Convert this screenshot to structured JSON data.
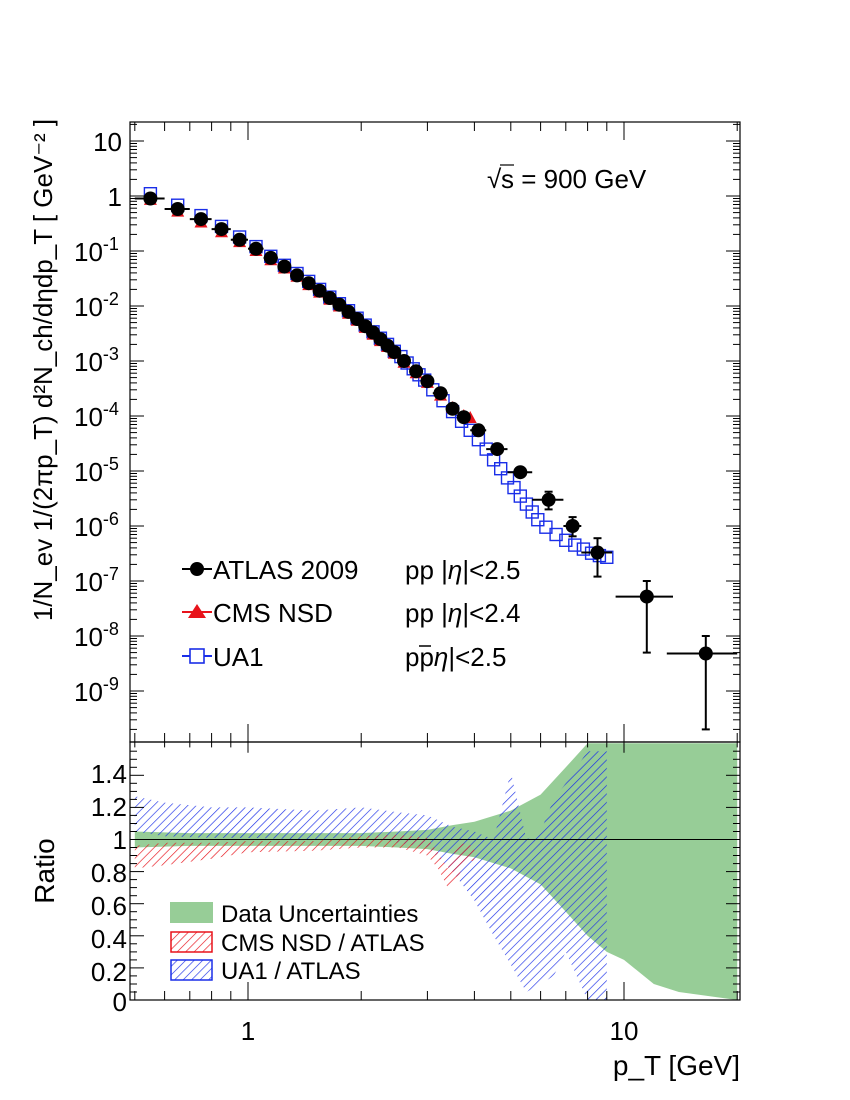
{
  "chart_data": [
    {
      "type": "scatter",
      "panel": "top",
      "title": "",
      "annotation": "s = 900 GeV",
      "annotation_sqrt_symbol": "√",
      "xlabel": "p_T [GeV]",
      "ylabel": "1/N_ev 1/(2πp_T) d²N_ch/dηdp_T [ GeV⁻² ]",
      "xscale": "log",
      "yscale": "log",
      "xlim": [
        0.5,
        20
      ],
      "ylim": [
        2.2e-10,
        22
      ],
      "y_ticks": [
        {
          "value": 10,
          "label": "10"
        },
        {
          "value": 1,
          "label": "1"
        },
        {
          "value": 0.1,
          "base": "10",
          "exp": "-1"
        },
        {
          "value": 0.01,
          "base": "10",
          "exp": "-2"
        },
        {
          "value": 0.001,
          "base": "10",
          "exp": "-3"
        },
        {
          "value": 0.0001,
          "base": "10",
          "exp": "-4"
        },
        {
          "value": 1e-05,
          "base": "10",
          "exp": "-5"
        },
        {
          "value": 1e-06,
          "base": "10",
          "exp": "-6"
        },
        {
          "value": 1e-07,
          "base": "10",
          "exp": "-7"
        },
        {
          "value": 1e-08,
          "base": "10",
          "exp": "-8"
        },
        {
          "value": 1e-09,
          "base": "10",
          "exp": "-9"
        }
      ],
      "legend": [
        {
          "name": "ATLAS 2009",
          "process": "pp |η|<2.5",
          "marker": "circle",
          "color": "#000000"
        },
        {
          "name": "CMS NSD",
          "process": "pp |η|<2.4",
          "marker": "triangle",
          "color": "#e8131b"
        },
        {
          "name": "UA1",
          "process": "pp̄ |η|<2.5",
          "marker": "open-square",
          "color": "#1a2ee8"
        }
      ],
      "legend_text": {
        "atlas_name": "ATLAS 2009",
        "atlas_proc": "pp |",
        "cms_name": "CMS NSD",
        "cms_proc": "pp |",
        "ua1_name": "UA1",
        "ua1_proc": "pp",
        "eta": "η",
        "atlas_cut": "|<2.5",
        "cms_cut": "|<2.4",
        "ua1_cut": "|<2.5",
        "ua1_pbar": "p̄"
      },
      "series": [
        {
          "name": "ATLAS 2009",
          "x": [
            0.55,
            0.65,
            0.75,
            0.85,
            0.95,
            1.05,
            1.15,
            1.25,
            1.35,
            1.45,
            1.55,
            1.65,
            1.75,
            1.85,
            1.95,
            2.05,
            2.15,
            2.25,
            2.35,
            2.45,
            2.6,
            2.8,
            3.0,
            3.25,
            3.5,
            3.75,
            4.1,
            4.6,
            5.3,
            6.3,
            7.3,
            8.5,
            11.5,
            16.5
          ],
          "y": [
            0.9,
            0.58,
            0.38,
            0.25,
            0.16,
            0.11,
            0.075,
            0.052,
            0.036,
            0.026,
            0.019,
            0.014,
            0.0105,
            0.0078,
            0.0058,
            0.0043,
            0.0033,
            0.0025,
            0.0019,
            0.00145,
            0.001,
            0.00065,
            0.00043,
            0.00026,
            0.000135,
            9.5e-05,
            5.5e-05,
            2.5e-05,
            9.5e-06,
            3e-06,
            1e-06,
            3.3e-07,
            5.2e-08,
            4.8e-09
          ],
          "xerr": [
            0.05,
            0.05,
            0.05,
            0.05,
            0.05,
            0.05,
            0.05,
            0.05,
            0.05,
            0.05,
            0.05,
            0.05,
            0.05,
            0.05,
            0.05,
            0.05,
            0.05,
            0.05,
            0.05,
            0.05,
            0.1,
            0.1,
            0.1,
            0.15,
            0.1,
            0.15,
            0.2,
            0.3,
            0.4,
            0.6,
            0.4,
            0.8,
            2.0,
            3.5
          ],
          "yerr_lo": [
            0,
            0,
            0,
            0,
            0,
            0,
            0,
            0,
            0,
            0,
            0,
            0,
            0,
            0,
            0,
            0,
            0,
            0,
            0,
            0,
            0,
            0,
            0,
            0,
            0,
            0,
            0,
            0,
            0,
            1e-06,
            3.5e-07,
            2.1e-07,
            4.7e-08,
            4.6e-09
          ],
          "yerr_hi": [
            0,
            0,
            0,
            0,
            0,
            0,
            0,
            0,
            0,
            0,
            0,
            0,
            0,
            0,
            0,
            0,
            0,
            0,
            0,
            0,
            0,
            0,
            0,
            0,
            0,
            0,
            0,
            0,
            0,
            1.2e-06,
            4.5e-07,
            2.7e-07,
            4.8e-08,
            5.2e-09
          ]
        },
        {
          "name": "CMS NSD",
          "x": [
            0.55,
            0.65,
            0.75,
            0.85,
            0.95,
            1.05,
            1.15,
            1.25,
            1.35,
            1.45,
            1.55,
            1.65,
            1.75,
            1.85,
            1.95,
            2.05,
            2.15,
            2.25,
            2.35,
            2.45,
            2.6,
            2.8,
            3.0,
            3.25,
            3.5,
            3.75,
            3.9
          ],
          "y": [
            0.85,
            0.52,
            0.33,
            0.22,
            0.145,
            0.1,
            0.068,
            0.048,
            0.034,
            0.024,
            0.0175,
            0.013,
            0.0098,
            0.0072,
            0.0054,
            0.004,
            0.003,
            0.0023,
            0.0018,
            0.00135,
            0.00093,
            0.0006,
            0.0004,
            0.000235,
            0.00014,
            0.0001,
            9.2e-05
          ]
        },
        {
          "name": "UA1",
          "x": [
            0.55,
            0.65,
            0.75,
            0.85,
            0.95,
            1.05,
            1.15,
            1.25,
            1.35,
            1.45,
            1.55,
            1.65,
            1.75,
            1.85,
            1.95,
            2.05,
            2.15,
            2.25,
            2.35,
            2.45,
            2.55,
            2.65,
            2.75,
            2.85,
            2.95,
            3.1,
            3.3,
            3.5,
            3.7,
            3.9,
            4.1,
            4.3,
            4.5,
            4.7,
            4.9,
            5.1,
            5.3,
            5.5,
            5.7,
            5.9,
            6.2,
            6.6,
            7.0,
            7.4,
            7.8,
            8.2,
            8.6,
            9.0
          ],
          "y": [
            1.1,
            0.68,
            0.44,
            0.28,
            0.18,
            0.12,
            0.08,
            0.055,
            0.039,
            0.028,
            0.02,
            0.0145,
            0.011,
            0.0082,
            0.006,
            0.0045,
            0.0034,
            0.0026,
            0.002,
            0.0015,
            0.0012,
            0.00092,
            0.00072,
            0.00056,
            0.00045,
            0.0003,
            0.00019,
            0.00012,
            8e-05,
            5.5e-05,
            3.7e-05,
            2.5e-05,
            1.6e-05,
            1.1e-05,
            7.5e-06,
            5e-06,
            3.5e-06,
            2.5e-06,
            1.8e-06,
            1.3e-06,
            9.5e-07,
            7e-07,
            5.5e-07,
            4.5e-07,
            3.8e-07,
            3.2e-07,
            2.9e-07,
            2.7e-07
          ]
        }
      ]
    },
    {
      "type": "area",
      "panel": "bottom",
      "ylabel": "Ratio",
      "xlabel": "p_T [GeV]",
      "xscale": "log",
      "xlim": [
        0.5,
        20
      ],
      "ylim": [
        0,
        1.55
      ],
      "y_ticks": [
        "1.4",
        "1.2",
        "1",
        "0.8",
        "0.6",
        "0.4",
        "0.2",
        "0"
      ],
      "x_ticks": [
        "1",
        "10"
      ],
      "reference_line": 1,
      "legend": [
        {
          "name": "Data Uncertainties",
          "style": "filled",
          "color": "#97cd97"
        },
        {
          "name": "CMS NSD / ATLAS",
          "style": "hatched",
          "color": "#e8131b"
        },
        {
          "name": "UA1 / ATLAS",
          "style": "hatched",
          "color": "#1a2ee8"
        }
      ],
      "series": [
        {
          "name": "Data Uncertainties",
          "x": [
            0.5,
            0.7,
            1.0,
            2.0,
            2.5,
            3.0,
            3.5,
            4.0,
            5.0,
            6.0,
            7.0,
            8.0,
            9.0,
            10.0,
            12.0,
            14.0,
            20.0
          ],
          "upper": [
            1.05,
            1.04,
            1.04,
            1.04,
            1.05,
            1.06,
            1.09,
            1.11,
            1.18,
            1.28,
            1.45,
            1.6,
            1.6,
            1.6,
            1.6,
            1.6,
            1.6
          ],
          "lower": [
            0.95,
            0.96,
            0.96,
            0.96,
            0.95,
            0.94,
            0.91,
            0.89,
            0.82,
            0.72,
            0.55,
            0.4,
            0.3,
            0.25,
            0.1,
            0.05,
            0.0
          ]
        },
        {
          "name": "CMS NSD / ATLAS",
          "x": [
            0.5,
            0.6,
            0.8,
            1.0,
            1.5,
            2.0,
            2.5,
            3.0,
            3.2,
            3.4,
            3.6,
            3.8,
            4.0
          ],
          "upper": [
            0.96,
            0.98,
            0.98,
            0.99,
            0.99,
            1.02,
            1.03,
            1.01,
            0.92,
            0.82,
            0.96,
            0.98,
            0.95
          ],
          "lower": [
            0.82,
            0.84,
            0.88,
            0.92,
            0.93,
            0.95,
            0.95,
            0.9,
            0.82,
            0.7,
            0.75,
            0.88,
            0.86
          ]
        },
        {
          "name": "UA1 / ATLAS",
          "x": [
            0.5,
            0.6,
            0.8,
            1.0,
            1.5,
            2.0,
            2.5,
            3.0,
            3.5,
            4.0,
            4.5,
            5.0,
            5.5,
            6.0,
            6.5,
            7.0,
            8.0,
            9.0
          ],
          "upper": [
            1.27,
            1.23,
            1.2,
            1.2,
            1.18,
            1.2,
            1.17,
            1.15,
            1.08,
            1.05,
            1.0,
            1.42,
            1.0,
            1.05,
            1.25,
            1.35,
            1.55,
            1.55
          ],
          "lower": [
            1.05,
            1.02,
            1.01,
            1.01,
            1.0,
            1.02,
            0.98,
            0.95,
            0.8,
            0.62,
            0.4,
            0.22,
            0.05,
            0.1,
            0.15,
            0.3,
            0.0,
            0.0
          ]
        }
      ]
    }
  ]
}
